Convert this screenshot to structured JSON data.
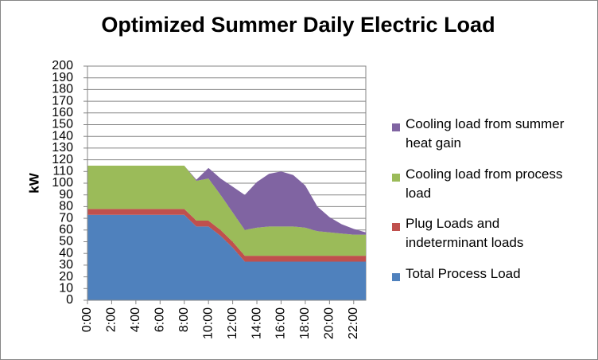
{
  "chart_data": {
    "type": "stacked_area",
    "title": "Optimized Summer Daily Electric Load",
    "y_label": "kW",
    "categories": [
      "0:00",
      null,
      "2:00",
      null,
      "4:00",
      null,
      "6:00",
      null,
      "8:00",
      null,
      "10:00",
      null,
      "12:00",
      null,
      "14:00",
      null,
      "16:00",
      null,
      "18:00",
      null,
      "20:00",
      null,
      "22:00",
      null
    ],
    "series": [
      {
        "name": "Total Process Load",
        "color": "#4f81bd",
        "values": [
          73,
          73,
          73,
          73,
          73,
          73,
          73,
          73,
          73,
          63,
          63,
          55,
          45,
          33,
          33,
          33,
          33,
          33,
          33,
          33,
          33,
          33,
          33,
          33
        ]
      },
      {
        "name": "Plug Loads and indeterminant loads",
        "color": "#c0504d",
        "values": [
          5,
          5,
          5,
          5,
          5,
          5,
          5,
          5,
          5,
          5,
          5,
          5,
          5,
          5,
          5,
          5,
          5,
          5,
          5,
          5,
          5,
          5,
          5,
          5
        ]
      },
      {
        "name": "Cooling load from process load",
        "color": "#9bbb59",
        "values": [
          37,
          37,
          37,
          37,
          37,
          37,
          37,
          37,
          37,
          34,
          36,
          30,
          25,
          22,
          24,
          25,
          25,
          25,
          24,
          21,
          20,
          19,
          18,
          18
        ]
      },
      {
        "name": "Cooling load from summer heat gain",
        "color": "#8064a2",
        "values": [
          0,
          0,
          0,
          0,
          0,
          0,
          0,
          0,
          0,
          1,
          9,
          14,
          22,
          30,
          39,
          45,
          47,
          44,
          36,
          21,
          13,
          8,
          5,
          2
        ]
      }
    ],
    "ylim": [
      0,
      200
    ],
    "yticks": [
      0,
      10,
      20,
      30,
      40,
      50,
      60,
      70,
      80,
      90,
      100,
      110,
      120,
      130,
      140,
      150,
      160,
      170,
      180,
      190,
      200
    ],
    "grid": true
  }
}
